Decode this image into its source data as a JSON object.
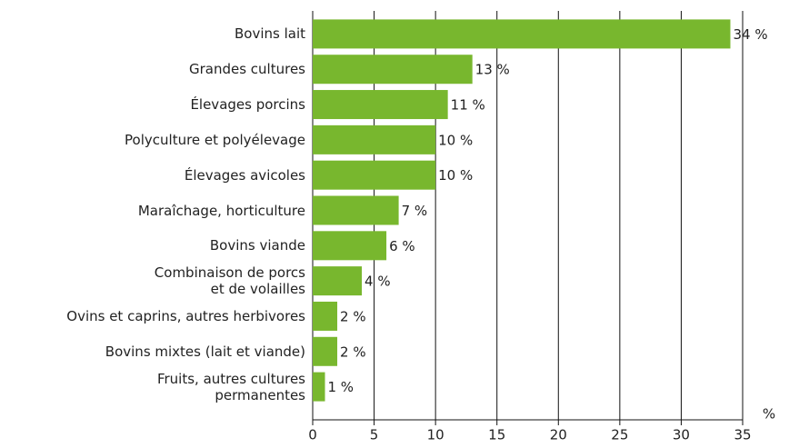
{
  "chart_data": {
    "type": "bar",
    "orientation": "horizontal",
    "categories": [
      "Bovins lait",
      "Grandes cultures",
      "Élevages porcins",
      "Polyculture et polyélevage",
      "Élevages avicoles",
      "Maraîchage, horticulture",
      "Bovins viande",
      "Combinaison de porcs\net de volailles",
      "Ovins et caprins, autres herbivores",
      "Bovins mixtes (lait et viande)",
      "Fruits, autres cultures\npermanentes"
    ],
    "values": [
      34,
      13,
      11,
      10,
      10,
      7,
      6,
      4,
      2,
      2,
      1
    ],
    "value_labels": [
      "34 %",
      "13 %",
      "11 %",
      "10 %",
      "10 %",
      "7 %",
      "6 %",
      "4 %",
      "2 %",
      "2 %",
      "1 %"
    ],
    "color": "#78b72e",
    "xlabel": "%",
    "xlim": [
      0,
      35
    ],
    "xticks": [
      0,
      5,
      10,
      15,
      20,
      25,
      30,
      35
    ],
    "grid": true
  }
}
